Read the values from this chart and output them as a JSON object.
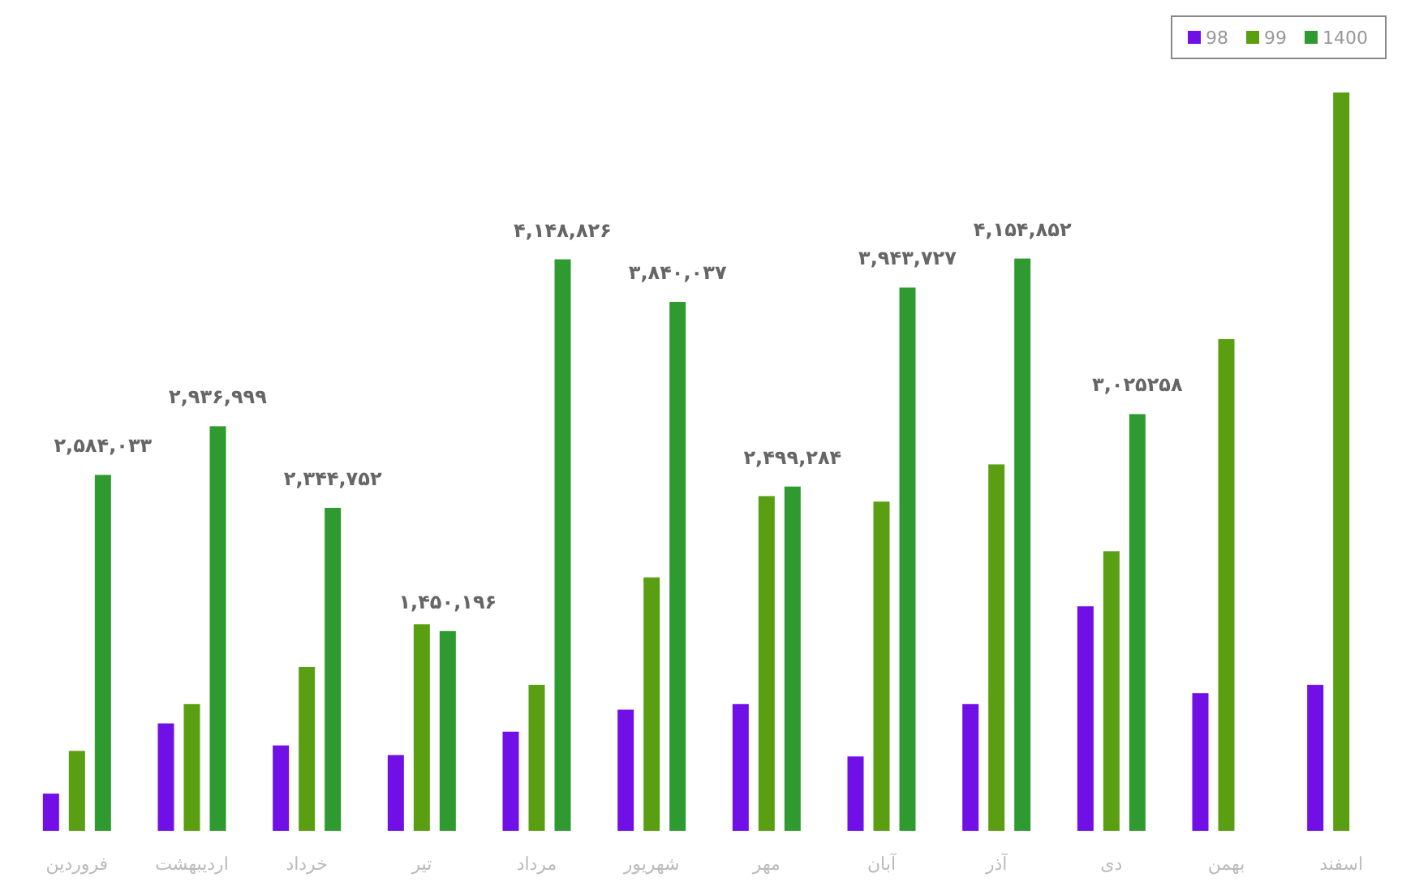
{
  "chart_data": {
    "type": "bar",
    "categories": [
      "فروردین",
      "اردیبهشت",
      "خرداد",
      "تیر",
      "مرداد",
      "شهریور",
      "مهر",
      "آبان",
      "آذر",
      "دی",
      "بهمن",
      "اسفند"
    ],
    "series": [
      {
        "name": "98",
        "color": "#7010e6",
        "values": [
          270000,
          780000,
          620000,
          550000,
          720000,
          880000,
          920000,
          540000,
          920000,
          1630000,
          1000000,
          1060000
        ]
      },
      {
        "name": "99",
        "color": "#5a9e12",
        "values": [
          580000,
          920000,
          1190000,
          1500000,
          1060000,
          1840000,
          2430000,
          2390000,
          2660000,
          2030000,
          3570000,
          5360000
        ]
      },
      {
        "name": "1400",
        "color": "#2e9a30",
        "values": [
          2584033,
          2936999,
          2344752,
          1450196,
          4148826,
          3840037,
          2499284,
          3943727,
          4154852,
          3025258,
          null,
          null
        ],
        "value_labels": [
          "۲,۵۸۴,۰۳۳",
          "۲,۹۳۶,۹۹۹",
          "۲,۳۴۴,۷۵۲",
          "۱,۴۵۰,۱۹۶",
          "۴,۱۴۸,۸۲۶",
          "۳,۸۴۰,۰۳۷",
          "۲,۴۹۹,۲۸۴",
          "۳,۹۴۳,۷۲۷",
          "۴,۱۵۴,۸۵۲",
          "۳,۰۲۵۲۵۸",
          null,
          null
        ]
      }
    ],
    "legend": "top right",
    "grid": false
  }
}
